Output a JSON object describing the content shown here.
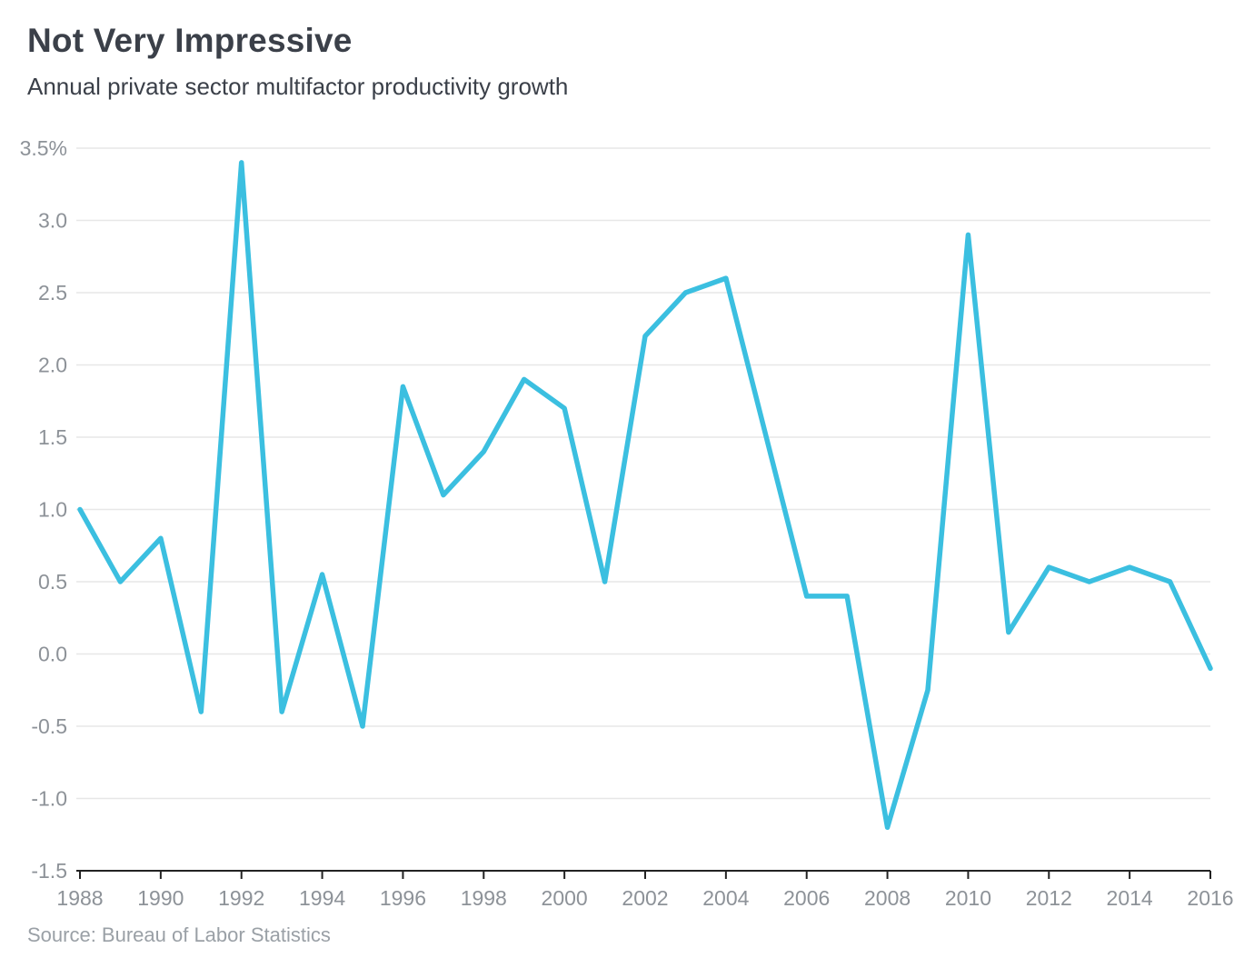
{
  "header": {
    "title": "Not Very Impressive",
    "subtitle": "Annual private sector multifactor productivity growth"
  },
  "footer": {
    "source": "Source: Bureau of Labor Statistics"
  },
  "chart_data": {
    "type": "line",
    "title": "Not Very Impressive",
    "subtitle": "Annual private sector multifactor productivity growth",
    "source": "Source: Bureau of Labor Statistics",
    "series_name": "Annual private sector multifactor productivity growth (%)",
    "x": [
      1988,
      1989,
      1990,
      1991,
      1992,
      1993,
      1994,
      1995,
      1996,
      1997,
      1998,
      1999,
      2000,
      2001,
      2002,
      2003,
      2004,
      2005,
      2006,
      2007,
      2008,
      2009,
      2010,
      2011,
      2012,
      2013,
      2014,
      2015,
      2016
    ],
    "values": [
      1.0,
      0.5,
      0.8,
      -0.4,
      3.4,
      -0.4,
      0.55,
      -0.5,
      1.85,
      1.1,
      1.4,
      1.9,
      1.7,
      0.5,
      2.2,
      2.5,
      2.6,
      1.5,
      0.4,
      0.4,
      -1.2,
      -0.25,
      2.9,
      0.15,
      0.6,
      0.5,
      0.6,
      0.5,
      -0.1
    ],
    "xlim": [
      1988,
      2016
    ],
    "ylim": [
      -1.5,
      3.5
    ],
    "x_tick_years": [
      1988,
      1990,
      1992,
      1994,
      1996,
      1998,
      2000,
      2002,
      2004,
      2006,
      2008,
      2010,
      2012,
      2014,
      2016
    ],
    "x_tick_labels": [
      "1988",
      "1990",
      "1992",
      "1994",
      "1996",
      "1998",
      "2000",
      "2002",
      "2004",
      "2006",
      "2008",
      "2010",
      "2012",
      "2014",
      "2016"
    ],
    "y_ticks": [
      3.5,
      3.0,
      2.5,
      2.0,
      1.5,
      1.0,
      0.5,
      0.0,
      -0.5,
      -1.0,
      -1.5
    ],
    "y_tick_labels": [
      "3.5%",
      "3.0",
      "2.5",
      "2.0",
      "1.5",
      "1.0",
      "0.5",
      "0.0",
      "-0.5",
      "-1.0",
      "-1.5"
    ],
    "grid": true,
    "legend": "none",
    "colors": {
      "line": "#3bbfe0",
      "grid": "#e7e7e7",
      "axis": "#222222",
      "tick_label": "#8d9298",
      "background": "#ffffff"
    }
  }
}
